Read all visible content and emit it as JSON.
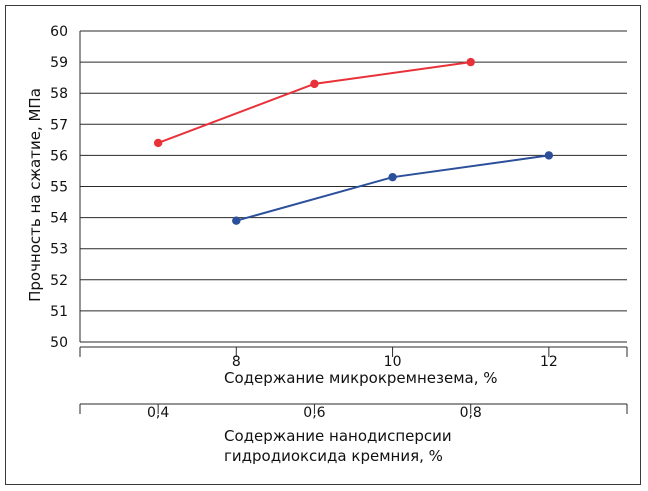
{
  "chart_data": {
    "type": "line",
    "ylabel": "Прочность на сжатие, МПа",
    "ylim": [
      50,
      60
    ],
    "yticks": [
      "50",
      "51",
      "52",
      "53",
      "54",
      "55",
      "56",
      "57",
      "58",
      "59",
      "60"
    ],
    "grid": true,
    "x_axes": [
      {
        "label_lines": [
          "Содержание микрокремнезема, %"
        ],
        "lim": [
          6,
          13
        ],
        "ticks": [
          8,
          10,
          12
        ],
        "tick_labels": [
          "8",
          "10",
          "12"
        ]
      },
      {
        "label_lines": [
          "Содержание нанодисперсии",
          "гидродиоксида кремния, %"
        ],
        "lim": [
          0.3,
          1.0
        ],
        "ticks": [
          0.4,
          0.6,
          0.8
        ],
        "tick_labels": [
          "0,4",
          "0,6",
          "0,8"
        ]
      }
    ],
    "series": [
      {
        "color": "#e8323a",
        "x_axis": 1,
        "x": [
          0.4,
          0.6,
          0.8
        ],
        "y": [
          56.4,
          58.3,
          59.0
        ]
      },
      {
        "color": "#2b4f9a",
        "x_axis": 0,
        "x": [
          8,
          10,
          12
        ],
        "y": [
          53.9,
          55.3,
          56.0
        ]
      }
    ]
  }
}
